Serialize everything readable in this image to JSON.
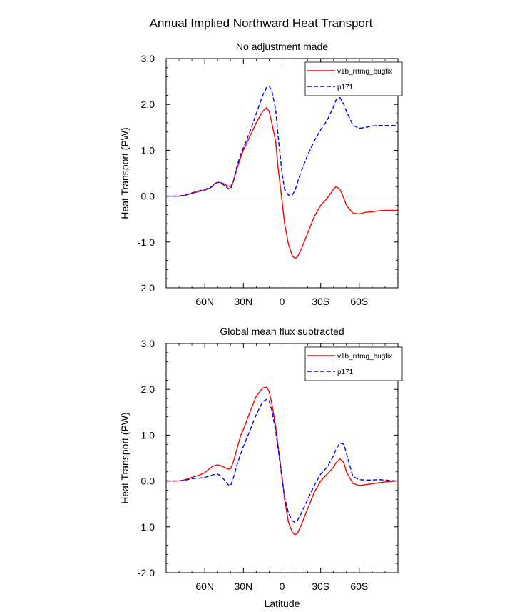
{
  "figure_title": "Annual Implied Northward Heat Transport",
  "chart_data": [
    {
      "type": "line",
      "title": "No adjustment made",
      "xlabel": "",
      "ylabel": "Heat Transport (PW)",
      "xlim": [
        90,
        -90
      ],
      "ylim": [
        -2.0,
        3.0
      ],
      "yticks": [
        3.0,
        2.0,
        1.0,
        0.0,
        -1.0,
        -2.0
      ],
      "ytick_labels": [
        "3.0",
        "2.0",
        "1.0",
        "0.0",
        "-1.0",
        "-2.0"
      ],
      "xticks": [
        60,
        30,
        0,
        -30,
        -60
      ],
      "xtick_labels": [
        "60N",
        "30N",
        "0",
        "30S",
        "60S"
      ],
      "legend": [
        "v1b_rrtmg_bugfix",
        "p171"
      ],
      "legend_position": "top-right",
      "zero_line": true,
      "series": [
        {
          "name": "v1b_rrtmg_bugfix",
          "color": "#ff0000",
          "dash": "solid",
          "x": [
            90,
            85,
            80,
            75,
            70,
            65,
            60,
            55,
            52,
            50,
            48,
            45,
            42,
            40,
            38,
            35,
            32,
            30,
            25,
            20,
            15,
            12,
            10,
            8,
            5,
            3,
            0,
            -2,
            -5,
            -8,
            -10,
            -12,
            -15,
            -20,
            -25,
            -30,
            -35,
            -40,
            -42,
            -45,
            -48,
            -50,
            -55,
            -60,
            -65,
            -70,
            -75,
            -80,
            -85,
            -90
          ],
          "y": [
            0.0,
            0.0,
            0.0,
            0.02,
            0.06,
            0.1,
            0.13,
            0.19,
            0.28,
            0.3,
            0.3,
            0.27,
            0.22,
            0.21,
            0.3,
            0.6,
            0.85,
            1.0,
            1.3,
            1.6,
            1.85,
            1.93,
            1.85,
            1.6,
            1.2,
            0.6,
            -0.1,
            -0.6,
            -1.05,
            -1.3,
            -1.36,
            -1.32,
            -1.15,
            -0.8,
            -0.45,
            -0.2,
            -0.05,
            0.15,
            0.21,
            0.15,
            -0.05,
            -0.2,
            -0.37,
            -0.39,
            -0.35,
            -0.34,
            -0.32,
            -0.31,
            -0.31,
            -0.31
          ]
        },
        {
          "name": "p171",
          "color": "#0000ff",
          "dash": "dashed",
          "x": [
            90,
            85,
            80,
            75,
            70,
            65,
            60,
            55,
            52,
            50,
            48,
            45,
            42,
            40,
            38,
            35,
            32,
            30,
            25,
            20,
            15,
            12,
            10,
            8,
            5,
            3,
            0,
            -2,
            -5,
            -8,
            -10,
            -12,
            -15,
            -20,
            -25,
            -30,
            -35,
            -40,
            -42,
            -45,
            -48,
            -50,
            -55,
            -60,
            -65,
            -70,
            -75,
            -80,
            -85,
            -90
          ],
          "y": [
            0.0,
            0.0,
            0.0,
            0.03,
            0.07,
            0.11,
            0.15,
            0.2,
            0.27,
            0.3,
            0.29,
            0.24,
            0.17,
            0.15,
            0.3,
            0.65,
            0.92,
            1.05,
            1.4,
            1.8,
            2.2,
            2.37,
            2.4,
            2.3,
            1.9,
            1.3,
            0.5,
            0.15,
            0.02,
            0.03,
            0.12,
            0.3,
            0.55,
            0.9,
            1.2,
            1.45,
            1.65,
            1.95,
            2.1,
            2.15,
            2.0,
            1.85,
            1.55,
            1.48,
            1.5,
            1.53,
            1.54,
            1.54,
            1.54,
            1.54
          ]
        }
      ]
    },
    {
      "type": "line",
      "title": "Global mean flux subtracted",
      "xlabel": "Latitude",
      "ylabel": "Heat Transport (PW)",
      "xlim": [
        90,
        -90
      ],
      "ylim": [
        -2.0,
        3.0
      ],
      "yticks": [
        3.0,
        2.0,
        1.0,
        0.0,
        -1.0,
        -2.0
      ],
      "ytick_labels": [
        "3.0",
        "2.0",
        "1.0",
        "0.0",
        "-1.0",
        "-2.0"
      ],
      "xticks": [
        60,
        30,
        0,
        -30,
        -60
      ],
      "xtick_labels": [
        "60N",
        "30N",
        "0",
        "30S",
        "60S"
      ],
      "legend": [
        "v1b_rrtmg_bugfix",
        "p171"
      ],
      "legend_position": "top-right",
      "zero_line": true,
      "series": [
        {
          "name": "v1b_rrtmg_bugfix",
          "color": "#ff0000",
          "dash": "solid",
          "x": [
            90,
            85,
            80,
            75,
            70,
            65,
            60,
            55,
            52,
            50,
            48,
            45,
            42,
            40,
            38,
            35,
            32,
            30,
            25,
            20,
            15,
            12,
            10,
            8,
            5,
            3,
            0,
            -2,
            -5,
            -8,
            -10,
            -12,
            -15,
            -20,
            -25,
            -30,
            -35,
            -40,
            -42,
            -45,
            -48,
            -50,
            -55,
            -60,
            -65,
            -70,
            -75,
            -80,
            -85,
            -90
          ],
          "y": [
            0.0,
            0.0,
            0.0,
            0.03,
            0.08,
            0.12,
            0.18,
            0.3,
            0.34,
            0.35,
            0.34,
            0.3,
            0.26,
            0.27,
            0.4,
            0.7,
            1.0,
            1.12,
            1.5,
            1.85,
            2.03,
            2.05,
            1.95,
            1.7,
            1.2,
            0.75,
            0.1,
            -0.4,
            -0.9,
            -1.12,
            -1.17,
            -1.14,
            -0.95,
            -0.6,
            -0.25,
            0.0,
            0.15,
            0.3,
            0.4,
            0.48,
            0.4,
            0.2,
            -0.05,
            -0.1,
            -0.08,
            -0.06,
            -0.04,
            -0.02,
            -0.01,
            0.0
          ]
        },
        {
          "name": "p171",
          "color": "#0000ff",
          "dash": "dashed",
          "x": [
            90,
            85,
            80,
            75,
            70,
            65,
            60,
            55,
            52,
            50,
            48,
            45,
            42,
            40,
            38,
            35,
            32,
            30,
            25,
            20,
            15,
            12,
            10,
            8,
            5,
            3,
            0,
            -2,
            -5,
            -8,
            -10,
            -12,
            -15,
            -20,
            -25,
            -30,
            -35,
            -40,
            -42,
            -45,
            -48,
            -50,
            -55,
            -60,
            -65,
            -70,
            -75,
            -80,
            -85,
            -90
          ],
          "y": [
            0.0,
            0.0,
            0.0,
            0.02,
            0.05,
            0.06,
            0.08,
            0.12,
            0.15,
            0.15,
            0.12,
            0.03,
            -0.08,
            -0.1,
            0.05,
            0.35,
            0.6,
            0.75,
            1.1,
            1.45,
            1.73,
            1.78,
            1.75,
            1.55,
            1.1,
            0.7,
            0.05,
            -0.35,
            -0.7,
            -0.87,
            -0.9,
            -0.86,
            -0.7,
            -0.4,
            -0.1,
            0.15,
            0.3,
            0.55,
            0.7,
            0.83,
            0.8,
            0.6,
            0.1,
            0.03,
            0.02,
            0.02,
            0.03,
            0.02,
            0.01,
            0.0
          ]
        }
      ]
    }
  ]
}
